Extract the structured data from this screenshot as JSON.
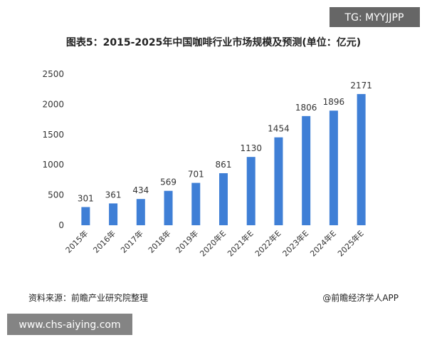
{
  "chart_data": {
    "type": "bar",
    "title": "图表5：2015-2025年中国咖啡行业市场规模及预测(单位：亿元)",
    "categories": [
      "2015年",
      "2016年",
      "2017年",
      "2018年",
      "2019年",
      "2020年E",
      "2021年E",
      "2022年E",
      "2023年E",
      "2024年E",
      "2025年E"
    ],
    "values": [
      301,
      361,
      434,
      569,
      701,
      861,
      1130,
      1454,
      1806,
      1896,
      2171
    ],
    "color": "#3f7fd6",
    "ylim": [
      0,
      2500
    ],
    "yticks": [
      0,
      500,
      1000,
      1500,
      2000,
      2500
    ],
    "grid": false
  },
  "source": "资料来源：前瞻产业研究院整理",
  "credit": "@前瞻经济学人APP",
  "badge": "TG: MYYJJPP",
  "site": "www.chs-aiying.com"
}
